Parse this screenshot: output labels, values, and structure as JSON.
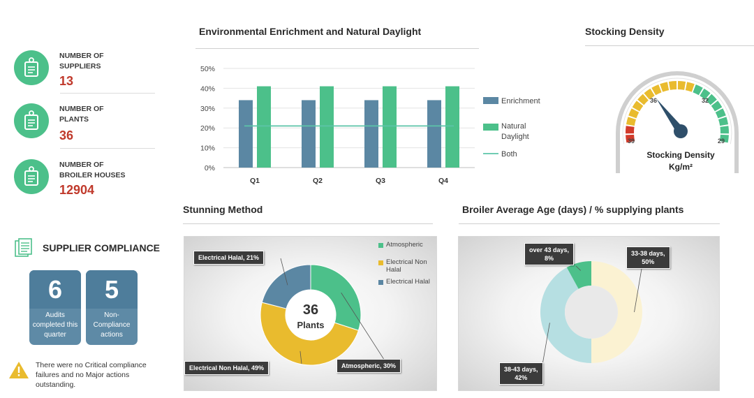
{
  "stats": [
    {
      "label_line1": "NUMBER OF",
      "label_line2": "SUPPLIERS",
      "value": "13",
      "icon": "clipboard-icon"
    },
    {
      "label_line1": "NUMBER OF",
      "label_line2": "PLANTS",
      "value": "36",
      "icon": "clipboard-icon"
    },
    {
      "label_line1": "NUMBER OF",
      "label_line2": "BROILER HOUSES",
      "value": "12904",
      "icon": "clipboard-icon"
    }
  ],
  "compliance": {
    "title": "SUPPLIER COMPLIANCE",
    "audits_value": "6",
    "audits_text": "Audits completed this quarter",
    "noncompliance_value": "5",
    "noncompliance_text": "Non-Compliance actions",
    "note": "There were no Critical compliance failures and no Major actions outstanding."
  },
  "colors": {
    "green": "#4cc08a",
    "kpi_red": "#c0392b",
    "blue": "#5b87a3",
    "yellow": "#e9bb2e",
    "age_cream": "#fbf2d2",
    "age_teal": "#b6dfe2",
    "age_green": "#4cc08a"
  },
  "chart_data": [
    {
      "type": "bar",
      "title": "Environmental Enrichment and Natural Daylight",
      "categories": [
        "Q1",
        "Q2",
        "Q3",
        "Q4"
      ],
      "series": [
        {
          "name": "Enrichment",
          "values": [
            34,
            34,
            34,
            34
          ],
          "color": "#5b87a3"
        },
        {
          "name": "Natural Daylight",
          "values": [
            41,
            41,
            41,
            41
          ],
          "color": "#4cc08a"
        },
        {
          "name": "Both",
          "type": "line",
          "values": [
            21,
            21,
            21,
            21
          ],
          "color": "#5cc4a8"
        }
      ],
      "yticks": [
        "0%",
        "10%",
        "20%",
        "30%",
        "40%",
        "50%"
      ],
      "ylim": [
        0,
        50
      ],
      "grid": true,
      "legend": "right"
    },
    {
      "type": "gauge",
      "title": "Stocking Density",
      "label": "Stocking Density",
      "unit": "Kg/m²",
      "value": 36,
      "ticks": [
        "39",
        "36",
        "32",
        "29"
      ]
    },
    {
      "type": "pie",
      "title": "Stunning Method",
      "center_value": "36",
      "center_label": "Plants",
      "slices": [
        {
          "label": "Atmospheric",
          "value": 30,
          "color": "#4cc08a",
          "callout": "Atmospheric, 30%"
        },
        {
          "label": "Electrical Non Halal",
          "value": 49,
          "color": "#e9bb2e",
          "callout": "Electrical Non Halal, 49%"
        },
        {
          "label": "Electrical Halal",
          "value": 21,
          "color": "#5b87a3",
          "callout": "Electrical Halal, 21%"
        }
      ],
      "legend": "top-right"
    },
    {
      "type": "pie",
      "title": "Broiler Average Age (days) / % supplying plants",
      "slices": [
        {
          "label": "33-38 days",
          "value": 50,
          "color": "#fbf2d2",
          "callout_line1": "33-38 days,",
          "callout_line2": "50%"
        },
        {
          "label": "38-43 days",
          "value": 42,
          "color": "#b6dfe2",
          "callout_line1": "38-43 days,",
          "callout_line2": "42%"
        },
        {
          "label": "over 43 days",
          "value": 8,
          "color": "#4cc08a",
          "callout_line1": "over 43 days,",
          "callout_line2": "8%"
        }
      ]
    }
  ]
}
